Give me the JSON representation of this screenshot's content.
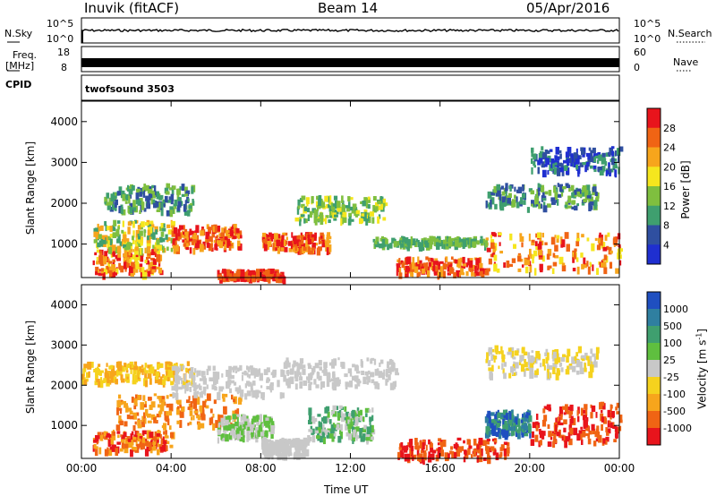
{
  "header": {
    "station": "Inuvik (fitACF)",
    "beam": "Beam 14",
    "date": "05/Apr/2016"
  },
  "strips": {
    "nsky_label": "N.Sky",
    "nsky_ticks": [
      "10^5",
      "10^0"
    ],
    "nsearch_label": "N.Search",
    "nsearch_ticks": [
      "10^5",
      "10^0"
    ],
    "freq_label": "Freq.",
    "freq_unit": "[MHz]",
    "freq_ticks": [
      "18",
      "8"
    ],
    "nave_label": "Nave",
    "nave_ticks": [
      "60",
      "0"
    ],
    "cpid_label": "CPID",
    "cpid_value": "twofsound 3503"
  },
  "chart_data": [
    {
      "type": "heatmap",
      "name": "power",
      "ylabel": "Slant Range [km]",
      "xlabel": "",
      "x_ticks": [
        "00:00",
        "04:00",
        "08:00",
        "12:00",
        "16:00",
        "20:00",
        "00:00"
      ],
      "y_ticks": [
        "1000",
        "2000",
        "3000",
        "4000"
      ],
      "xlim_hours": [
        0,
        24
      ],
      "ylim_km": [
        180,
        4500
      ],
      "colorbar": {
        "label": "Power [dB]",
        "ticks": [
          "28",
          "24",
          "20",
          "16",
          "12",
          "8",
          "4"
        ],
        "colors": [
          "#e8141c",
          "#f06414",
          "#f7a51c",
          "#f5e61e",
          "#7fbf3f",
          "#3f9f6f",
          "#2f4fa0",
          "#1f2fd0"
        ]
      }
    },
    {
      "type": "heatmap",
      "name": "velocity",
      "ylabel": "Slant Range [km]",
      "xlabel": "Time UT",
      "x_ticks": [
        "00:00",
        "04:00",
        "08:00",
        "12:00",
        "16:00",
        "20:00",
        "00:00"
      ],
      "y_ticks": [
        "1000",
        "2000",
        "3000",
        "4000"
      ],
      "xlim_hours": [
        0,
        24
      ],
      "ylim_km": [
        180,
        4500
      ],
      "colorbar": {
        "label": "Velocity [m s",
        "label_sup": "-1",
        "label_end": "]",
        "ticks": [
          "1000",
          "500",
          "100",
          "25",
          "-25",
          "-100",
          "-500",
          "-1000"
        ],
        "colors": [
          "#1f4fc0",
          "#2f7fa0",
          "#3f9f6f",
          "#5fbf3f",
          "#c8c8c8",
          "#f5d21e",
          "#f7a51c",
          "#f06414",
          "#e8141c"
        ]
      }
    }
  ]
}
